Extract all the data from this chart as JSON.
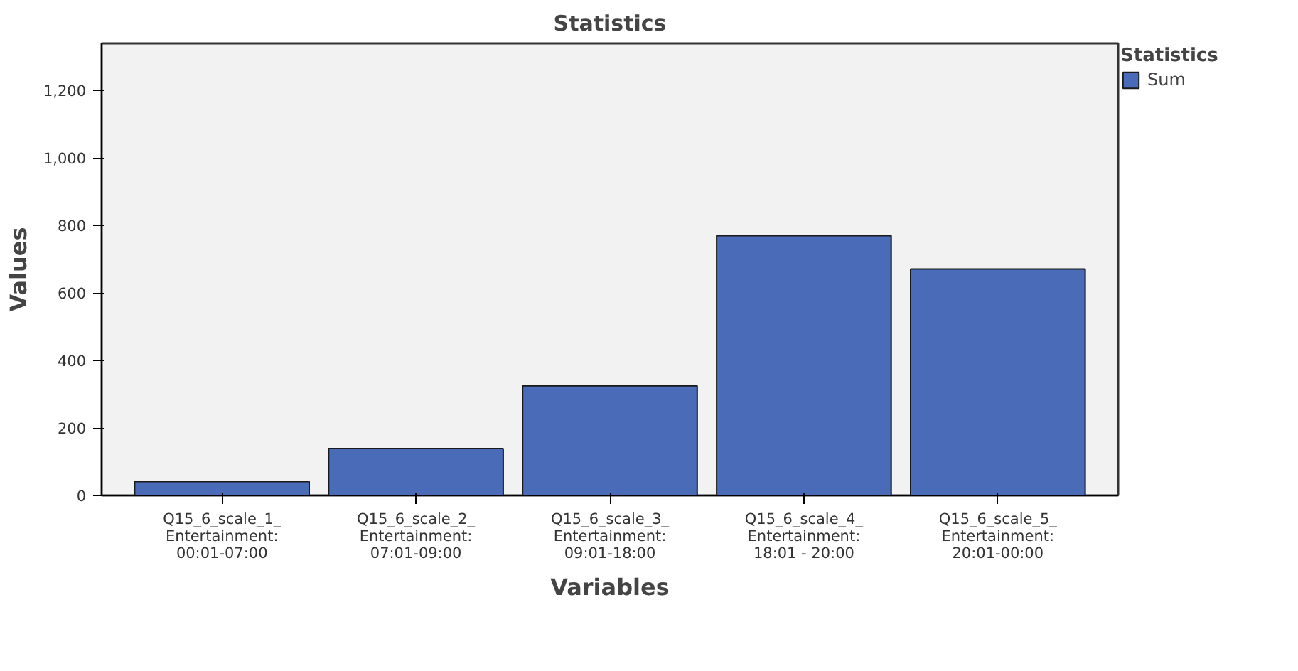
{
  "chart_data": {
    "type": "bar",
    "title": "Statistics",
    "xlabel": "Variables",
    "ylabel": "Values",
    "legend_title": "Statistics",
    "categories": [
      "Q15_6_scale_1_\nEntertainment:\n00:01-07:00",
      "Q15_6_scale_2_\nEntertainment:\n07:01-09:00",
      "Q15_6_scale_3_\nEntertainment:\n09:01-18:00",
      "Q15_6_scale_4_\nEntertainment:\n18:01 - 20:00",
      "Q15_6_scale_5_\nEntertainment:\n20:01-00:00"
    ],
    "series": [
      {
        "name": "Sum",
        "color": "#4a6bb7",
        "values": [
          41,
          139,
          325,
          770,
          671
        ]
      }
    ],
    "ylim": [
      0,
      1340
    ],
    "yticks": [
      0,
      200,
      400,
      600,
      800,
      {
        "value": 1000,
        "label": "1,000"
      },
      {
        "value": 1200,
        "label": "1,200"
      }
    ],
    "grid": false,
    "legend": "top right"
  }
}
